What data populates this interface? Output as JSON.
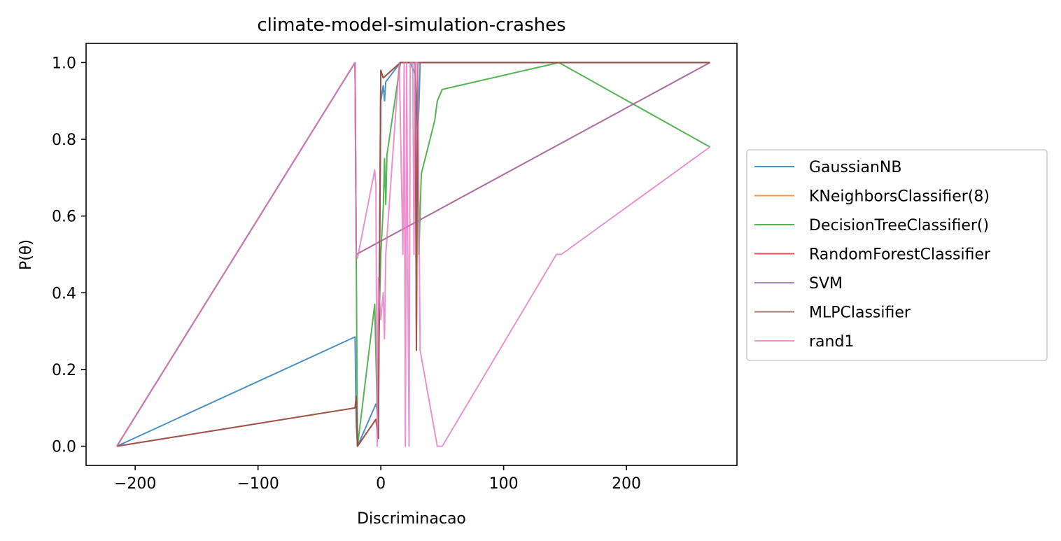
{
  "chart_data": {
    "type": "line",
    "title": "climate-model-simulation-crashes",
    "xlabel": "Discriminacao",
    "ylabel": "P(θ)",
    "xlim": [
      -240,
      290
    ],
    "ylim": [
      -0.05,
      1.05
    ],
    "xticks": [
      -200,
      -100,
      0,
      100,
      200
    ],
    "xtick_labels": [
      "−200",
      "−100",
      "0",
      "100",
      "200"
    ],
    "yticks": [
      0.0,
      0.2,
      0.4,
      0.6,
      0.8,
      1.0
    ],
    "ytick_labels": [
      "0.0",
      "0.2",
      "0.4",
      "0.6",
      "0.8",
      "1.0"
    ],
    "grid": false,
    "legend_position": "center-right outside",
    "series": [
      {
        "name": "GaussianNB",
        "color": "#1f77b4",
        "points": [
          [
            -215,
            0.0
          ],
          [
            -21,
            0.285
          ],
          [
            -20,
            0.06
          ],
          [
            -19,
            0.0
          ],
          [
            -4,
            0.11
          ],
          [
            -2,
            0.08
          ],
          [
            0,
            0.9
          ],
          [
            2,
            0.94
          ],
          [
            3,
            0.9
          ],
          [
            4,
            0.95
          ],
          [
            16,
            1.0
          ],
          [
            20,
            1.0
          ],
          [
            24,
            1.0
          ],
          [
            28,
            0.97
          ],
          [
            30,
            0.81
          ],
          [
            31,
            0.88
          ],
          [
            32,
            1.0
          ],
          [
            268,
            1.0
          ]
        ]
      },
      {
        "name": "KNeighborsClassifier(8)",
        "color": "#ff7f0e",
        "points": [
          [
            -215,
            0.0
          ],
          [
            -21,
            1.0
          ],
          [
            -20,
            0.5
          ],
          [
            268,
            1.0
          ]
        ]
      },
      {
        "name": "DecisionTreeClassifier()",
        "color": "#2ca02c",
        "points": [
          [
            -215,
            0.0
          ],
          [
            -21,
            1.0
          ],
          [
            -20,
            0.5
          ],
          [
            -19,
            0.0
          ],
          [
            -5,
            0.37
          ],
          [
            -3,
            0.1
          ],
          [
            0,
            0.5
          ],
          [
            2,
            0.62
          ],
          [
            3,
            0.75
          ],
          [
            4,
            0.63
          ],
          [
            5,
            0.76
          ],
          [
            16,
            1.0
          ],
          [
            30,
            1.0
          ],
          [
            31,
            0.5
          ],
          [
            33,
            0.71
          ],
          [
            44,
            0.85
          ],
          [
            46,
            0.9
          ],
          [
            50,
            0.93
          ],
          [
            145,
            1.0
          ],
          [
            268,
            0.78
          ]
        ]
      },
      {
        "name": "RandomForestClassifier",
        "color": "#d62728",
        "points": [
          [
            -215,
            0.0
          ],
          [
            -21,
            0.1
          ],
          [
            -20,
            0.13
          ],
          [
            -19,
            0.0
          ],
          [
            -4,
            0.07
          ],
          [
            -2,
            0.02
          ],
          [
            0,
            0.98
          ],
          [
            2,
            0.96
          ],
          [
            16,
            1.0
          ],
          [
            20,
            1.0
          ],
          [
            24,
            1.0
          ],
          [
            28,
            1.0
          ],
          [
            29,
            0.25
          ],
          [
            30,
            1.0
          ],
          [
            268,
            1.0
          ]
        ]
      },
      {
        "name": "SVM",
        "color": "#9467bd",
        "points": [
          [
            -215,
            0.0
          ],
          [
            -21,
            1.0
          ],
          [
            -20,
            0.5
          ],
          [
            268,
            1.0
          ]
        ]
      },
      {
        "name": "MLPClassifier",
        "color": "#8c564b",
        "points": [
          [
            -215,
            0.0
          ],
          [
            -21,
            0.1
          ],
          [
            -20,
            0.13
          ],
          [
            -19,
            0.0
          ],
          [
            -4,
            0.07
          ],
          [
            -2,
            0.02
          ],
          [
            0,
            0.98
          ],
          [
            2,
            0.96
          ],
          [
            16,
            1.0
          ],
          [
            20,
            1.0
          ],
          [
            24,
            1.0
          ],
          [
            28,
            1.0
          ],
          [
            29,
            0.25
          ],
          [
            30,
            1.0
          ],
          [
            268,
            1.0
          ]
        ]
      },
      {
        "name": "rand1",
        "color": "#e377c2",
        "points": [
          [
            -215,
            0.0
          ],
          [
            -21,
            1.0
          ],
          [
            -20,
            0.5
          ],
          [
            -19,
            0.49
          ],
          [
            -5,
            0.72
          ],
          [
            -4,
            0.68
          ],
          [
            -3,
            0.0
          ],
          [
            -2,
            0.44
          ],
          [
            -1,
            0.38
          ],
          [
            0,
            0.33
          ],
          [
            2,
            0.4
          ],
          [
            3,
            0.28
          ],
          [
            4,
            0.5
          ],
          [
            15,
            1.0
          ],
          [
            18,
            0.5
          ],
          [
            19,
            1.0
          ],
          [
            20,
            0.0
          ],
          [
            21,
            1.0
          ],
          [
            22,
            0.5
          ],
          [
            23,
            0.0
          ],
          [
            24,
            1.0
          ],
          [
            26,
            1.0
          ],
          [
            27,
            0.5
          ],
          [
            28,
            1.0
          ],
          [
            30,
            1.0
          ],
          [
            32,
            0.25
          ],
          [
            46,
            0.0
          ],
          [
            50,
            0.0
          ],
          [
            143,
            0.5
          ],
          [
            147,
            0.5
          ],
          [
            268,
            0.78
          ]
        ]
      }
    ]
  }
}
